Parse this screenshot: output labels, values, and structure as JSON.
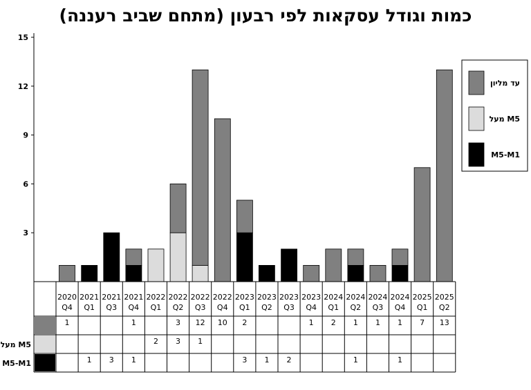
{
  "chart_data": {
    "type": "bar",
    "stacked": true,
    "title": "כמות וגודל עסקאות לפי רבעון (מתחם שביב רעננה)",
    "ylim": [
      0,
      15
    ],
    "yticks": [
      3,
      6,
      9,
      12,
      15
    ],
    "grid": false,
    "legend_placement": "right",
    "categories": [
      [
        "2020",
        "Q4"
      ],
      [
        "2021",
        "Q1"
      ],
      [
        "2021",
        "Q3"
      ],
      [
        "2021",
        "Q4"
      ],
      [
        "2022",
        "Q1"
      ],
      [
        "2022",
        "Q2"
      ],
      [
        "2022",
        "Q3"
      ],
      [
        "2022",
        "Q4"
      ],
      [
        "2023",
        "Q1"
      ],
      [
        "2023",
        "Q2"
      ],
      [
        "2023",
        "Q3"
      ],
      [
        "2023",
        "Q4"
      ],
      [
        "2024",
        "Q1"
      ],
      [
        "2024",
        "Q2"
      ],
      [
        "2024",
        "Q3"
      ],
      [
        "2024",
        "Q4"
      ],
      [
        "2025",
        "Q1"
      ],
      [
        "2025",
        "Q2"
      ]
    ],
    "series": [
      {
        "name": "M5-M1",
        "color": "#000000",
        "values": [
          null,
          1,
          3,
          1,
          null,
          null,
          null,
          null,
          3,
          1,
          2,
          null,
          null,
          1,
          null,
          1,
          null,
          null
        ]
      },
      {
        "name": "מעל M5",
        "color": "#dcdcdc",
        "values": [
          null,
          null,
          null,
          null,
          2,
          3,
          1,
          null,
          null,
          null,
          null,
          null,
          null,
          null,
          null,
          null,
          null,
          null
        ]
      },
      {
        "name": "עד מליון",
        "color": "#808080",
        "values": [
          1,
          null,
          null,
          1,
          null,
          3,
          12,
          10,
          2,
          null,
          null,
          1,
          2,
          1,
          1,
          1,
          7,
          13
        ]
      }
    ],
    "legend": [
      {
        "label": "עד מליון",
        "color": "#808080"
      },
      {
        "label": "מעל M5",
        "color": "#dcdcdc"
      },
      {
        "label": "M5-M1",
        "color": "#000000"
      }
    ],
    "table_rows": [
      {
        "label": "",
        "color": "#808080",
        "series": 2
      },
      {
        "label": "מעל M5",
        "color": "#dcdcdc",
        "series": 1
      },
      {
        "label": "M5-M1",
        "color": "#000000",
        "series": 0
      }
    ]
  }
}
